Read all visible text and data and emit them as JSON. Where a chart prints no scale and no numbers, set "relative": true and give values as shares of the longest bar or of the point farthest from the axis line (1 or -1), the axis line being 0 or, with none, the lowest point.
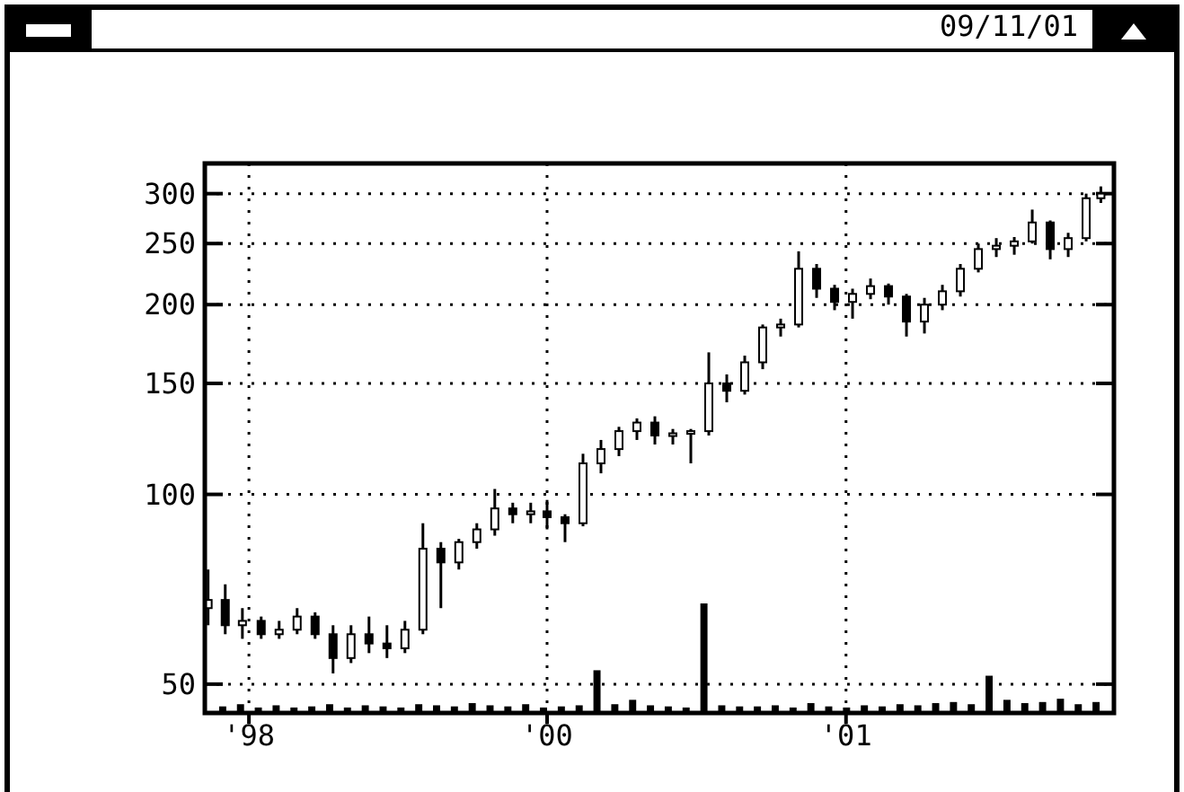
{
  "chart_data": [
    {
      "type": "candlestick",
      "subtitle": "09/11/01",
      "log": true,
      "grid": true,
      "xlim": [
        "1998-11-08",
        "2001-11-25"
      ],
      "xticks": [
        {
          "value": "1999-01-01",
          "label": "'98"
        },
        {
          "value": "2000-01-01",
          "label": "'00"
        },
        {
          "value": "2001-01-01",
          "label": "'01"
        }
      ],
      "ylim": [
        45,
        335
      ],
      "yticks": [
        50,
        100,
        150,
        200,
        250,
        300
      ],
      "x": [
        "1998-11-12",
        "1998-12-03",
        "1998-12-24",
        "1999-01-16",
        "1999-02-07",
        "1999-03-01",
        "1999-03-23",
        "1999-04-14",
        "1999-05-06",
        "1999-05-28",
        "1999-06-19",
        "1999-07-11",
        "1999-08-02",
        "1999-08-24",
        "1999-09-15",
        "1999-10-07",
        "1999-10-29",
        "1999-11-20",
        "1999-12-12",
        "2000-01-01",
        "2000-01-23",
        "2000-02-14",
        "2000-03-07",
        "2000-03-29",
        "2000-04-20",
        "2000-05-12",
        "2000-06-03",
        "2000-06-25",
        "2000-07-17",
        "2000-08-08",
        "2000-08-30",
        "2000-09-21",
        "2000-10-13",
        "2000-11-04",
        "2000-11-26",
        "2000-12-18",
        "2001-01-09",
        "2001-01-31",
        "2001-02-22",
        "2001-03-16",
        "2001-04-07",
        "2001-04-29",
        "2001-05-21",
        "2001-06-12",
        "2001-07-04",
        "2001-07-26",
        "2001-08-17",
        "2001-09-08",
        "2001-09-30",
        "2001-10-22",
        "2001-11-09"
      ],
      "ohlc": [
        [
          66,
          76,
          62,
          68
        ],
        [
          68,
          72,
          60,
          62
        ],
        [
          62,
          66,
          59,
          63
        ],
        [
          63,
          64,
          59,
          60
        ],
        [
          60,
          63,
          59,
          61
        ],
        [
          61,
          66,
          60,
          64
        ],
        [
          64,
          65,
          59,
          60
        ],
        [
          60,
          62,
          52,
          55
        ],
        [
          55,
          62,
          54,
          60
        ],
        [
          60,
          64,
          56,
          58
        ],
        [
          58,
          62,
          55,
          57
        ],
        [
          57,
          63,
          56,
          61
        ],
        [
          61,
          90,
          60,
          82
        ],
        [
          82,
          84,
          66,
          78
        ],
        [
          78,
          85,
          76,
          84
        ],
        [
          84,
          90,
          82,
          88
        ],
        [
          88,
          102,
          86,
          95
        ],
        [
          95,
          97,
          90,
          93
        ],
        [
          93,
          97,
          90,
          94
        ],
        [
          94,
          98,
          88,
          92
        ],
        [
          92,
          93,
          84,
          90
        ],
        [
          90,
          116,
          89,
          112
        ],
        [
          112,
          122,
          108,
          118
        ],
        [
          118,
          128,
          115,
          126
        ],
        [
          126,
          132,
          122,
          130
        ],
        [
          130,
          133,
          120,
          124
        ],
        [
          124,
          127,
          120,
          125
        ],
        [
          125,
          127,
          112,
          126
        ],
        [
          126,
          168,
          124,
          150
        ],
        [
          150,
          155,
          140,
          146
        ],
        [
          146,
          166,
          144,
          162
        ],
        [
          162,
          186,
          158,
          184
        ],
        [
          184,
          190,
          178,
          186
        ],
        [
          186,
          243,
          184,
          228
        ],
        [
          228,
          232,
          205,
          212
        ],
        [
          212,
          215,
          196,
          202
        ],
        [
          202,
          212,
          190,
          208
        ],
        [
          208,
          220,
          204,
          214
        ],
        [
          214,
          216,
          200,
          206
        ],
        [
          206,
          208,
          178,
          188
        ],
        [
          188,
          205,
          180,
          200
        ],
        [
          200,
          215,
          196,
          210
        ],
        [
          210,
          232,
          206,
          228
        ],
        [
          228,
          250,
          225,
          245
        ],
        [
          245,
          255,
          238,
          248
        ],
        [
          248,
          256,
          240,
          252
        ],
        [
          252,
          283,
          250,
          270
        ],
        [
          270,
          272,
          236,
          245
        ],
        [
          245,
          260,
          238,
          255
        ],
        [
          255,
          300,
          252,
          295
        ],
        [
          295,
          308,
          290,
          300
        ]
      ]
    },
    {
      "type": "bar",
      "relative": true,
      "color": "#000000",
      "categories": [
        null,
        null,
        null,
        null,
        null,
        null,
        null,
        null,
        null,
        null,
        null,
        null,
        null,
        null,
        null,
        null,
        null,
        null,
        null,
        null,
        null,
        null,
        null,
        null,
        null,
        null,
        null,
        null,
        null,
        null,
        null,
        null,
        null,
        null,
        null,
        null,
        null,
        null,
        null,
        null,
        null,
        null,
        null,
        null,
        null,
        null,
        null,
        null,
        null,
        null
      ],
      "values": [
        0.06,
        0.08,
        0.05,
        0.07,
        0.05,
        0.06,
        0.08,
        0.05,
        0.07,
        0.06,
        0.05,
        0.08,
        0.07,
        0.06,
        0.09,
        0.07,
        0.06,
        0.08,
        0.05,
        0.06,
        0.07,
        0.39,
        0.08,
        0.12,
        0.07,
        0.06,
        0.05,
        1,
        0.07,
        0.06,
        0.06,
        0.07,
        0.05,
        0.09,
        0.06,
        0.05,
        0.07,
        0.06,
        0.08,
        0.07,
        0.09,
        0.1,
        0.08,
        0.34,
        0.12,
        0.09,
        0.1,
        0.13,
        0.08,
        0.1
      ]
    }
  ]
}
